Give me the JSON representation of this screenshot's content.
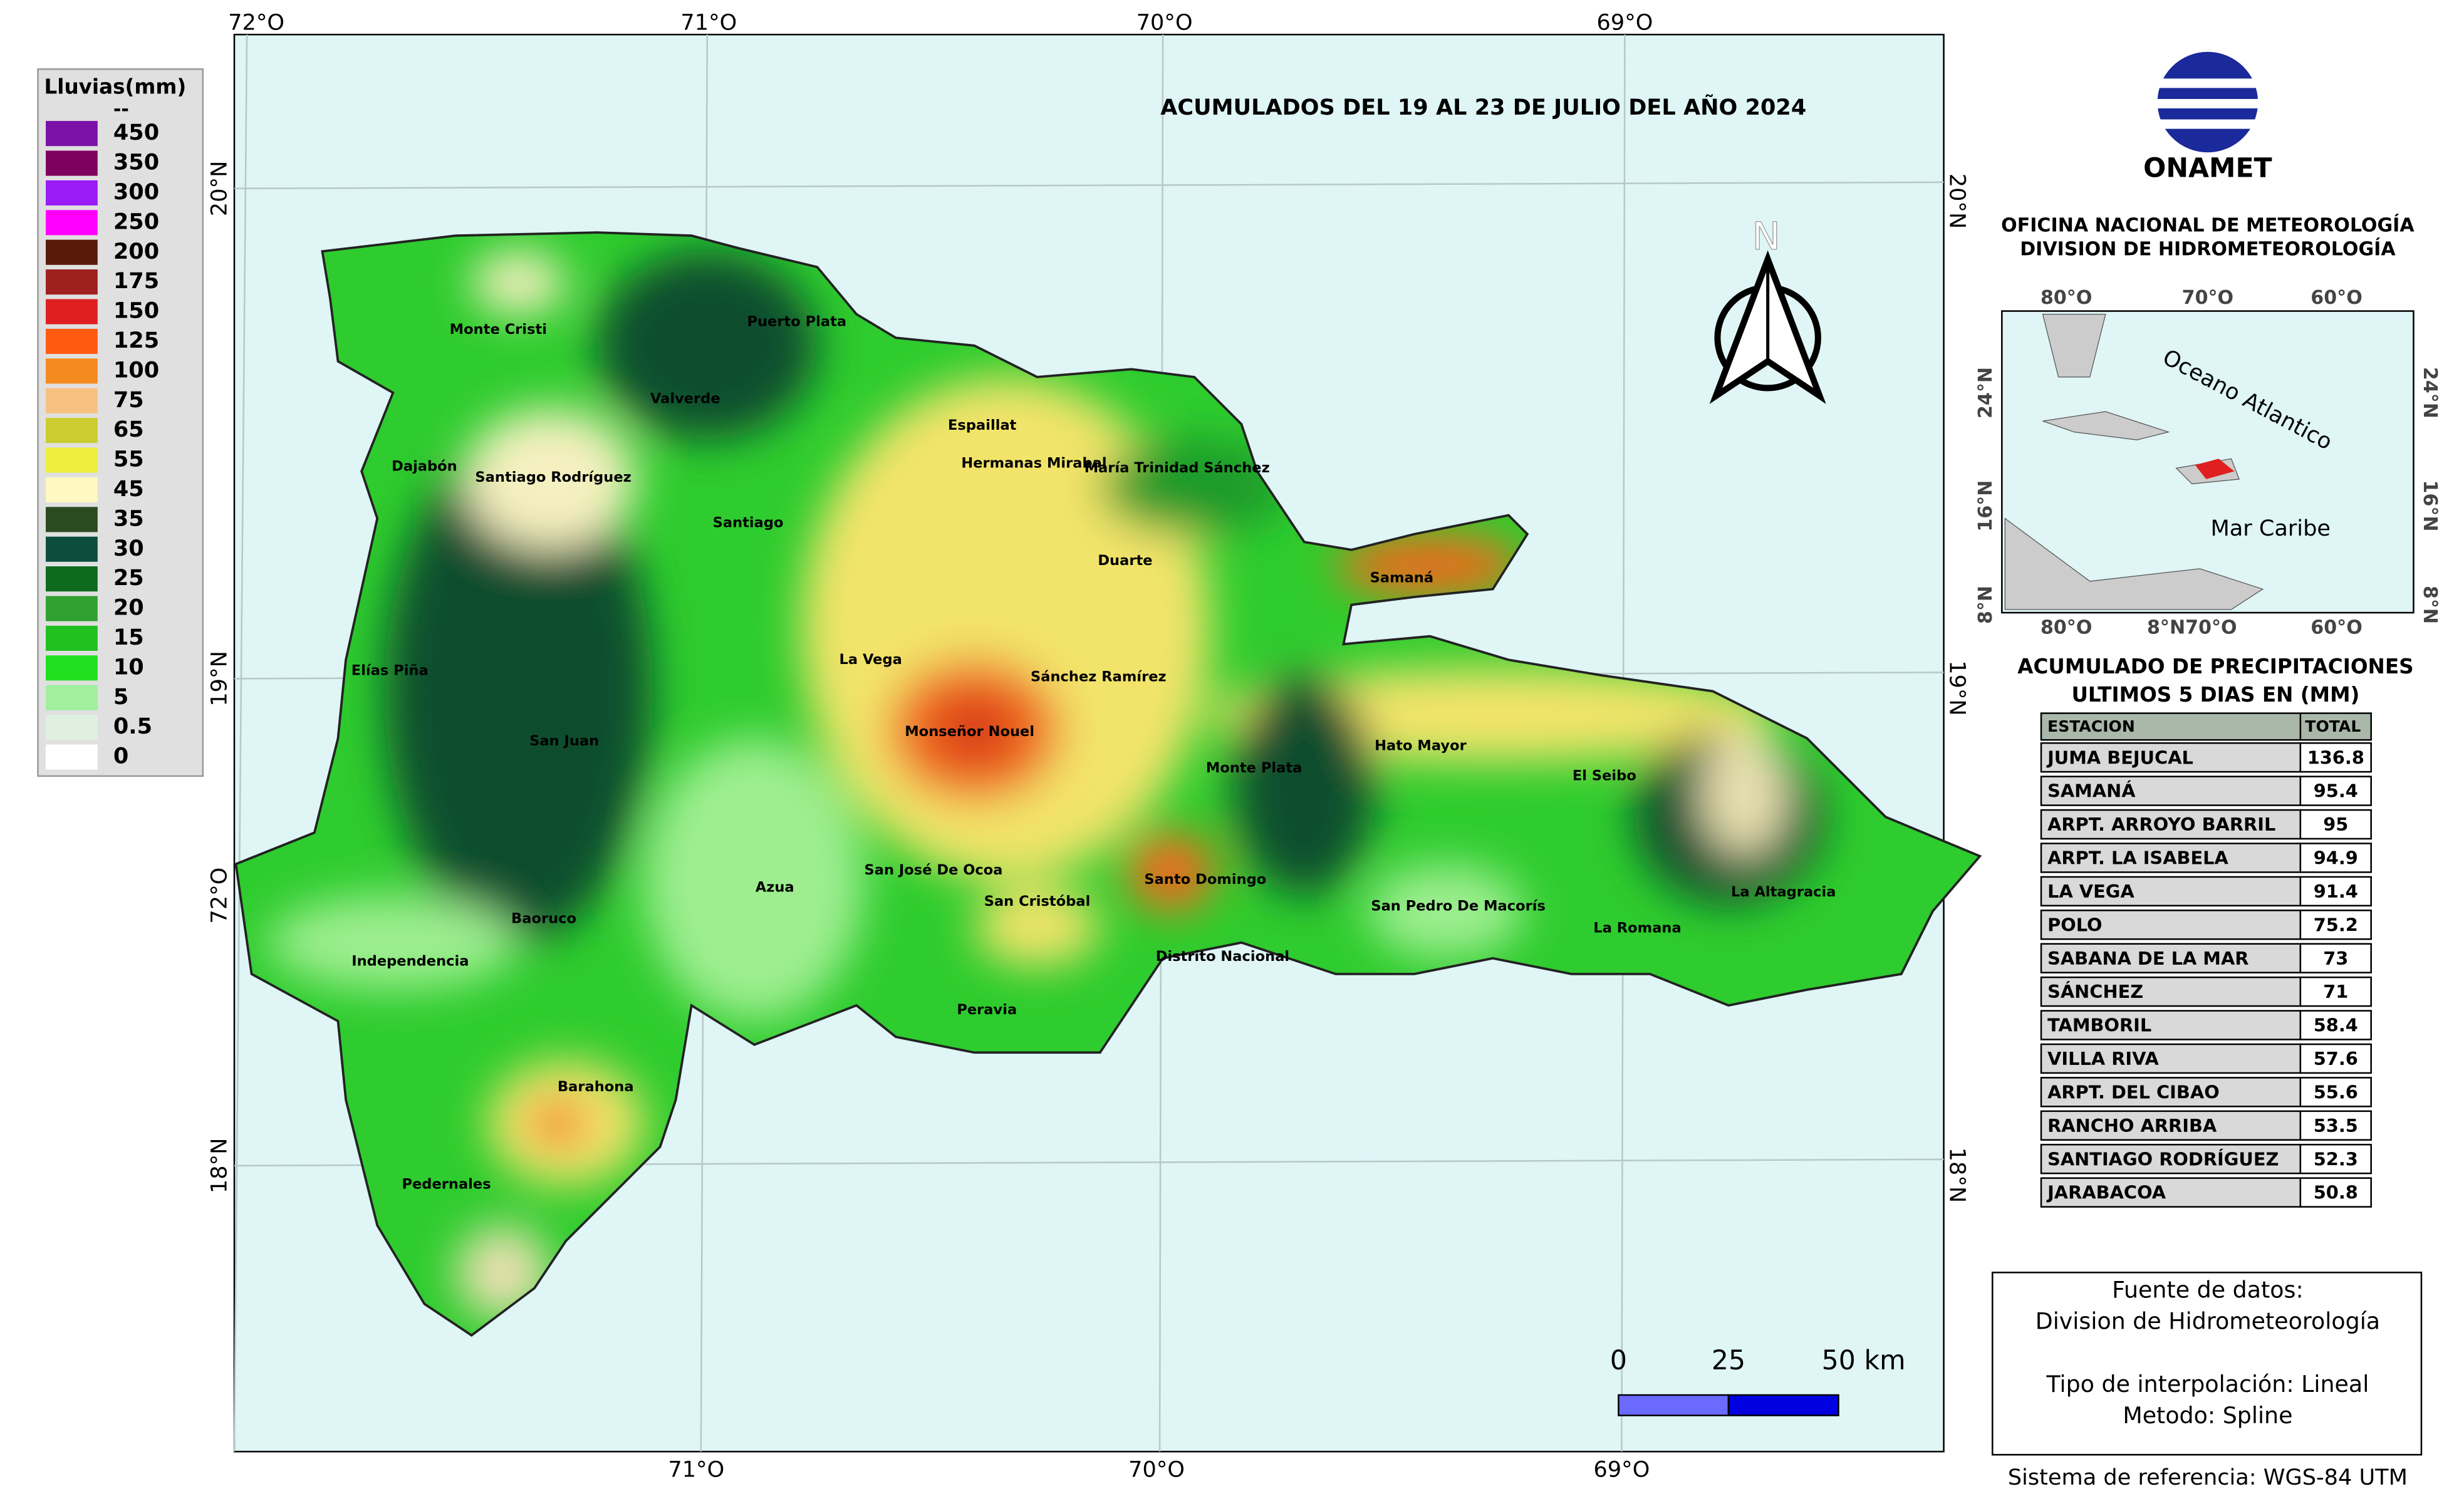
{
  "legend": {
    "title": "Lluvias(mm)",
    "top_label": "--",
    "items": [
      {
        "label": "450",
        "color": "#7a12a8"
      },
      {
        "label": "350",
        "color": "#800060"
      },
      {
        "label": "300",
        "color": "#9b1bf5"
      },
      {
        "label": "250",
        "color": "#ff00ff"
      },
      {
        "label": "200",
        "color": "#5a1a0a"
      },
      {
        "label": "175",
        "color": "#a02020"
      },
      {
        "label": "150",
        "color": "#e02020"
      },
      {
        "label": "125",
        "color": "#ff5a10"
      },
      {
        "label": "100",
        "color": "#f58a20"
      },
      {
        "label": "75",
        "color": "#f8c080"
      },
      {
        "label": "65",
        "color": "#cccc30"
      },
      {
        "label": "55",
        "color": "#eeee40"
      },
      {
        "label": "45",
        "color": "#fff8c0"
      },
      {
        "label": "35",
        "color": "#2a4a20"
      },
      {
        "label": "30",
        "color": "#0d4d40"
      },
      {
        "label": "25",
        "color": "#0d6a1e"
      },
      {
        "label": "20",
        "color": "#30a030"
      },
      {
        "label": "15",
        "color": "#20c020"
      },
      {
        "label": "10",
        "color": "#20e020"
      },
      {
        "label": "5",
        "color": "#a0f0a0"
      },
      {
        "label": "0.5",
        "color": "#e0f0e0"
      },
      {
        "label": "0",
        "color": "#ffffff"
      }
    ]
  },
  "map": {
    "title": "ACUMULADOS DEL 19 AL 23  DE JULIO  DEL AÑO 2024",
    "north": "N",
    "top_labels": [
      "72°O",
      "71°O",
      "70°O",
      "69°O"
    ],
    "bottom_labels": [
      "71°O",
      "70°O",
      "69°O"
    ],
    "left_labels": [
      "20°N",
      "19°N",
      "72°O",
      "18°N"
    ],
    "right_labels": [
      "20°N",
      "19°N",
      "18°N"
    ],
    "provinces": [
      "Monte Cristi",
      "Puerto Plata",
      "Valverde",
      "Dajabón",
      "Santiago Rodríguez",
      "Santiago",
      "Espaillat",
      "Hermanas Mirabal",
      "María Trinidad Sánchez",
      "Duarte",
      "Samaná",
      "La Vega",
      "Elías Piña",
      "Sánchez Ramírez",
      "Monseñor Nouel",
      "San Juan",
      "Hato Mayor",
      "Monte Plata",
      "El Seibo",
      "San José De Ocoa",
      "Azua",
      "Santo Domingo",
      "San Cristóbal",
      "San Pedro De Macorís",
      "La Altagracia",
      "Baoruco",
      "La Romana",
      "Distrito Nacional",
      "Independencia",
      "Peravia",
      "Barahona",
      "Pedernales"
    ],
    "scale_labels": [
      "0",
      "25",
      "50 km"
    ]
  },
  "header": {
    "logo": "ONAMET",
    "office": "OFICINA NACIONAL DE METEOROLOGÍA",
    "division": "DIVISION DE HIDROMETEOROLOGÍA"
  },
  "inset": {
    "top_labels": [
      "80°O",
      "70°O",
      "60°O"
    ],
    "bottom_labels": [
      "80°O",
      "8°N70°O",
      "60°O"
    ],
    "left_labels": [
      "24°N",
      "16°N",
      "8°N"
    ],
    "right_labels": [
      "24°N",
      "16°N",
      "8°N"
    ],
    "ocean": "Oceano Atlantico",
    "sea": "Mar Caribe"
  },
  "table": {
    "title": "ACUMULADO DE PRECIPITACIONES",
    "subtitle": "ULTIMOS 5 DIAS EN (MM)",
    "columns": [
      "ESTACION",
      "TOTAL"
    ],
    "rows": [
      [
        "JUMA BEJUCAL",
        136.8
      ],
      [
        "SAMANÁ",
        95.4
      ],
      [
        "ARPT. ARROYO BARRIL",
        95
      ],
      [
        "ARPT. LA ISABELA",
        94.9
      ],
      [
        "LA VEGA",
        91.4
      ],
      [
        "POLO",
        75.2
      ],
      [
        "SABANA DE LA MAR",
        73
      ],
      [
        "SÁNCHEZ",
        71
      ],
      [
        "TAMBORIL",
        58.4
      ],
      [
        "VILLA RIVA",
        57.6
      ],
      [
        "ARPT. DEL CIBAO",
        55.6
      ],
      [
        "RANCHO ARRIBA",
        53.5
      ],
      [
        "SANTIAGO RODRÍGUEZ",
        52.3
      ],
      [
        "JARABACOA",
        50.8
      ]
    ]
  },
  "source": {
    "lines": [
      "Fuente de datos:",
      "Division de Hidrometeorología",
      "Tipo de interpolación: Lineal",
      "Metodo: Spline"
    ],
    "reference": "Sistema de referencia: WGS-84 UTM"
  }
}
